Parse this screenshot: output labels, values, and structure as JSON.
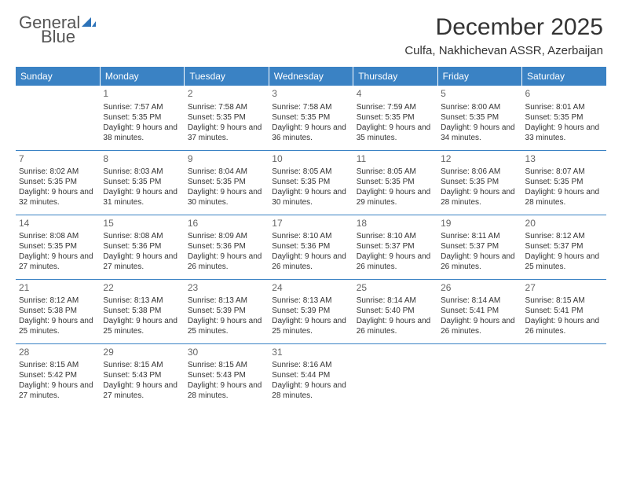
{
  "colors": {
    "header_bg": "#3a82c4",
    "header_text": "#ffffff",
    "border": "#3a82c4",
    "logo_gray": "#555555",
    "logo_blue": "#2c72b8",
    "daynum": "#666666",
    "text": "#333333",
    "background": "#ffffff"
  },
  "logo": {
    "line1": "General",
    "line2": "Blue"
  },
  "title": "December 2025",
  "location": "Culfa, Nakhichevan ASSR, Azerbaijan",
  "weekdays": [
    "Sunday",
    "Monday",
    "Tuesday",
    "Wednesday",
    "Thursday",
    "Friday",
    "Saturday"
  ],
  "weeks": [
    [
      {
        "day": "",
        "sunrise": "",
        "sunset": "",
        "daylight": ""
      },
      {
        "day": "1",
        "sunrise": "Sunrise: 7:57 AM",
        "sunset": "Sunset: 5:35 PM",
        "daylight": "Daylight: 9 hours and 38 minutes."
      },
      {
        "day": "2",
        "sunrise": "Sunrise: 7:58 AM",
        "sunset": "Sunset: 5:35 PM",
        "daylight": "Daylight: 9 hours and 37 minutes."
      },
      {
        "day": "3",
        "sunrise": "Sunrise: 7:58 AM",
        "sunset": "Sunset: 5:35 PM",
        "daylight": "Daylight: 9 hours and 36 minutes."
      },
      {
        "day": "4",
        "sunrise": "Sunrise: 7:59 AM",
        "sunset": "Sunset: 5:35 PM",
        "daylight": "Daylight: 9 hours and 35 minutes."
      },
      {
        "day": "5",
        "sunrise": "Sunrise: 8:00 AM",
        "sunset": "Sunset: 5:35 PM",
        "daylight": "Daylight: 9 hours and 34 minutes."
      },
      {
        "day": "6",
        "sunrise": "Sunrise: 8:01 AM",
        "sunset": "Sunset: 5:35 PM",
        "daylight": "Daylight: 9 hours and 33 minutes."
      }
    ],
    [
      {
        "day": "7",
        "sunrise": "Sunrise: 8:02 AM",
        "sunset": "Sunset: 5:35 PM",
        "daylight": "Daylight: 9 hours and 32 minutes."
      },
      {
        "day": "8",
        "sunrise": "Sunrise: 8:03 AM",
        "sunset": "Sunset: 5:35 PM",
        "daylight": "Daylight: 9 hours and 31 minutes."
      },
      {
        "day": "9",
        "sunrise": "Sunrise: 8:04 AM",
        "sunset": "Sunset: 5:35 PM",
        "daylight": "Daylight: 9 hours and 30 minutes."
      },
      {
        "day": "10",
        "sunrise": "Sunrise: 8:05 AM",
        "sunset": "Sunset: 5:35 PM",
        "daylight": "Daylight: 9 hours and 30 minutes."
      },
      {
        "day": "11",
        "sunrise": "Sunrise: 8:05 AM",
        "sunset": "Sunset: 5:35 PM",
        "daylight": "Daylight: 9 hours and 29 minutes."
      },
      {
        "day": "12",
        "sunrise": "Sunrise: 8:06 AM",
        "sunset": "Sunset: 5:35 PM",
        "daylight": "Daylight: 9 hours and 28 minutes."
      },
      {
        "day": "13",
        "sunrise": "Sunrise: 8:07 AM",
        "sunset": "Sunset: 5:35 PM",
        "daylight": "Daylight: 9 hours and 28 minutes."
      }
    ],
    [
      {
        "day": "14",
        "sunrise": "Sunrise: 8:08 AM",
        "sunset": "Sunset: 5:35 PM",
        "daylight": "Daylight: 9 hours and 27 minutes."
      },
      {
        "day": "15",
        "sunrise": "Sunrise: 8:08 AM",
        "sunset": "Sunset: 5:36 PM",
        "daylight": "Daylight: 9 hours and 27 minutes."
      },
      {
        "day": "16",
        "sunrise": "Sunrise: 8:09 AM",
        "sunset": "Sunset: 5:36 PM",
        "daylight": "Daylight: 9 hours and 26 minutes."
      },
      {
        "day": "17",
        "sunrise": "Sunrise: 8:10 AM",
        "sunset": "Sunset: 5:36 PM",
        "daylight": "Daylight: 9 hours and 26 minutes."
      },
      {
        "day": "18",
        "sunrise": "Sunrise: 8:10 AM",
        "sunset": "Sunset: 5:37 PM",
        "daylight": "Daylight: 9 hours and 26 minutes."
      },
      {
        "day": "19",
        "sunrise": "Sunrise: 8:11 AM",
        "sunset": "Sunset: 5:37 PM",
        "daylight": "Daylight: 9 hours and 26 minutes."
      },
      {
        "day": "20",
        "sunrise": "Sunrise: 8:12 AM",
        "sunset": "Sunset: 5:37 PM",
        "daylight": "Daylight: 9 hours and 25 minutes."
      }
    ],
    [
      {
        "day": "21",
        "sunrise": "Sunrise: 8:12 AM",
        "sunset": "Sunset: 5:38 PM",
        "daylight": "Daylight: 9 hours and 25 minutes."
      },
      {
        "day": "22",
        "sunrise": "Sunrise: 8:13 AM",
        "sunset": "Sunset: 5:38 PM",
        "daylight": "Daylight: 9 hours and 25 minutes."
      },
      {
        "day": "23",
        "sunrise": "Sunrise: 8:13 AM",
        "sunset": "Sunset: 5:39 PM",
        "daylight": "Daylight: 9 hours and 25 minutes."
      },
      {
        "day": "24",
        "sunrise": "Sunrise: 8:13 AM",
        "sunset": "Sunset: 5:39 PM",
        "daylight": "Daylight: 9 hours and 25 minutes."
      },
      {
        "day": "25",
        "sunrise": "Sunrise: 8:14 AM",
        "sunset": "Sunset: 5:40 PM",
        "daylight": "Daylight: 9 hours and 26 minutes."
      },
      {
        "day": "26",
        "sunrise": "Sunrise: 8:14 AM",
        "sunset": "Sunset: 5:41 PM",
        "daylight": "Daylight: 9 hours and 26 minutes."
      },
      {
        "day": "27",
        "sunrise": "Sunrise: 8:15 AM",
        "sunset": "Sunset: 5:41 PM",
        "daylight": "Daylight: 9 hours and 26 minutes."
      }
    ],
    [
      {
        "day": "28",
        "sunrise": "Sunrise: 8:15 AM",
        "sunset": "Sunset: 5:42 PM",
        "daylight": "Daylight: 9 hours and 27 minutes."
      },
      {
        "day": "29",
        "sunrise": "Sunrise: 8:15 AM",
        "sunset": "Sunset: 5:43 PM",
        "daylight": "Daylight: 9 hours and 27 minutes."
      },
      {
        "day": "30",
        "sunrise": "Sunrise: 8:15 AM",
        "sunset": "Sunset: 5:43 PM",
        "daylight": "Daylight: 9 hours and 28 minutes."
      },
      {
        "day": "31",
        "sunrise": "Sunrise: 8:16 AM",
        "sunset": "Sunset: 5:44 PM",
        "daylight": "Daylight: 9 hours and 28 minutes."
      },
      {
        "day": "",
        "sunrise": "",
        "sunset": "",
        "daylight": ""
      },
      {
        "day": "",
        "sunrise": "",
        "sunset": "",
        "daylight": ""
      },
      {
        "day": "",
        "sunrise": "",
        "sunset": "",
        "daylight": ""
      }
    ]
  ]
}
